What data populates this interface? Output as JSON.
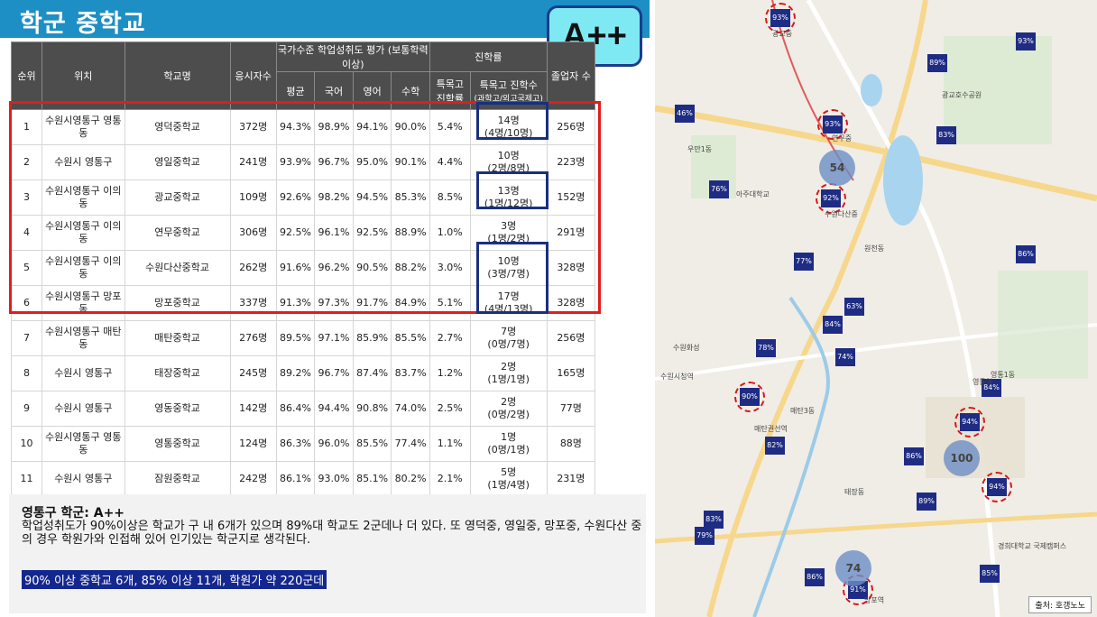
{
  "header": {
    "title": "학군 중학교",
    "grade": "A++"
  },
  "table": {
    "group_headers": {
      "rank": "순위",
      "location": "위치",
      "school": "학교명",
      "test_takers": "응시자수",
      "assessment": "국가수준 학업성취도 평가 (보통학력이상)",
      "advancement": "진학률",
      "graduates": "졸업자 수"
    },
    "sub_headers": {
      "avg": "평균",
      "korean": "국어",
      "english": "영어",
      "math": "수학",
      "special_rate": "특목고 진학률",
      "special_count": "특목고 진학수",
      "special_count_note": "(과학고/외고국제고)"
    },
    "rows": [
      {
        "rank": "1",
        "location": "수원시영통구 영통동",
        "school": "영덕중학교",
        "takers": "372명",
        "avg": "94.3%",
        "korean": "98.9%",
        "english": "94.1%",
        "math": "90.0%",
        "rate": "5.4%",
        "count": "14명",
        "count_detail": "(4명/10명)",
        "grads": "256명"
      },
      {
        "rank": "2",
        "location": "수원시 영통구",
        "school": "영일중학교",
        "takers": "241명",
        "avg": "93.9%",
        "korean": "96.7%",
        "english": "95.0%",
        "math": "90.1%",
        "rate": "4.4%",
        "count": "10명",
        "count_detail": "(2명/8명)",
        "grads": "223명"
      },
      {
        "rank": "3",
        "location": "수원시영통구 이의동",
        "school": "광교중학교",
        "takers": "109명",
        "avg": "92.6%",
        "korean": "98.2%",
        "english": "94.5%",
        "math": "85.3%",
        "rate": "8.5%",
        "count": "13명",
        "count_detail": "(1명/12명)",
        "grads": "152명"
      },
      {
        "rank": "4",
        "location": "수원시영통구 이의동",
        "school": "연무중학교",
        "takers": "306명",
        "avg": "92.5%",
        "korean": "96.1%",
        "english": "92.5%",
        "math": "88.9%",
        "rate": "1.0%",
        "count": "3명",
        "count_detail": "(1명/2명)",
        "grads": "291명"
      },
      {
        "rank": "5",
        "location": "수원시영통구 이의동",
        "school": "수원다산중학교",
        "takers": "262명",
        "avg": "91.6%",
        "korean": "96.2%",
        "english": "90.5%",
        "math": "88.2%",
        "rate": "3.0%",
        "count": "10명",
        "count_detail": "(3명/7명)",
        "grads": "328명"
      },
      {
        "rank": "6",
        "location": "수원시영통구 망포동",
        "school": "망포중학교",
        "takers": "337명",
        "avg": "91.3%",
        "korean": "97.3%",
        "english": "91.7%",
        "math": "84.9%",
        "rate": "5.1%",
        "count": "17명",
        "count_detail": "(4명/13명)",
        "grads": "328명"
      },
      {
        "rank": "7",
        "location": "수원시영통구 매탄동",
        "school": "매탄중학교",
        "takers": "276명",
        "avg": "89.5%",
        "korean": "97.1%",
        "english": "85.9%",
        "math": "85.5%",
        "rate": "2.7%",
        "count": "7명",
        "count_detail": "(0명/7명)",
        "grads": "256명"
      },
      {
        "rank": "8",
        "location": "수원시 영통구",
        "school": "태장중학교",
        "takers": "245명",
        "avg": "89.2%",
        "korean": "96.7%",
        "english": "87.4%",
        "math": "83.7%",
        "rate": "1.2%",
        "count": "2명",
        "count_detail": "(1명/1명)",
        "grads": "165명"
      },
      {
        "rank": "9",
        "location": "수원시 영통구",
        "school": "영동중학교",
        "takers": "142명",
        "avg": "86.4%",
        "korean": "94.4%",
        "english": "90.8%",
        "math": "74.0%",
        "rate": "2.5%",
        "count": "2명",
        "count_detail": "(0명/2명)",
        "grads": "77명"
      },
      {
        "rank": "10",
        "location": "수원시영통구 영통동",
        "school": "영통중학교",
        "takers": "124명",
        "avg": "86.3%",
        "korean": "96.0%",
        "english": "85.5%",
        "math": "77.4%",
        "rate": "1.1%",
        "count": "1명",
        "count_detail": "(0명/1명)",
        "grads": "88명"
      },
      {
        "rank": "11",
        "location": "수원시 영통구",
        "school": "잠원중학교",
        "takers": "242명",
        "avg": "86.1%",
        "korean": "93.0%",
        "english": "85.1%",
        "math": "80.2%",
        "rate": "2.1%",
        "count": "5명",
        "count_detail": "(1명/4명)",
        "grads": "231명"
      }
    ]
  },
  "comment": {
    "title": "영통구 학군: A++",
    "body": "학업성취도가 90%이상은 학교가 구 내 6개가 있으며 89%대 학교도 2군데나 더 있다. 또 영덕중, 영일중, 망포중, 수원다산 중 의 경우 학원가와 인접해 있어 인기있는 학군지로 생각된다.",
    "highlight": "90% 이상 중학교 6개, 85% 이상 11개, 학원가 약 220군데"
  },
  "map": {
    "source": "출처: 호갱노노",
    "pins": [
      {
        "label": "93%"
      },
      {
        "label": "93%"
      },
      {
        "label": "89%"
      },
      {
        "label": "46%"
      },
      {
        "label": "93%"
      },
      {
        "label": "83%"
      },
      {
        "label": "76%"
      },
      {
        "label": "92%"
      },
      {
        "label": "77%"
      },
      {
        "label": "86%"
      },
      {
        "label": "63%"
      },
      {
        "label": "84%"
      },
      {
        "label": "78%"
      },
      {
        "label": "74%"
      },
      {
        "label": "90%"
      },
      {
        "label": "84%"
      },
      {
        "label": "94%"
      },
      {
        "label": "82%"
      },
      {
        "label": "86%"
      },
      {
        "label": "94%"
      },
      {
        "label": "89%"
      },
      {
        "label": "83%"
      },
      {
        "label": "79%"
      },
      {
        "label": "86%"
      },
      {
        "label": "91%"
      },
      {
        "label": "85%"
      }
    ],
    "bubbles": [
      "54",
      "100",
      "74"
    ],
    "labels": [
      "광교중",
      "연무중",
      "수원다산중",
      "광교호수공원",
      "아주대학교",
      "매탄권선역",
      "영통역",
      "망포역",
      "원천동",
      "우만1동",
      "매탄3동",
      "영통1동",
      "태장동",
      "수원화성",
      "수원시청역",
      "경희대학교 국제캠퍼스"
    ]
  },
  "colors": {
    "header_blue": "#1d8fc4",
    "badge_cyan": "#7fe9f3",
    "red_outline": "#e21c1c",
    "navy_outline": "#1b2f80",
    "pin_navy": "#1e2c84"
  }
}
